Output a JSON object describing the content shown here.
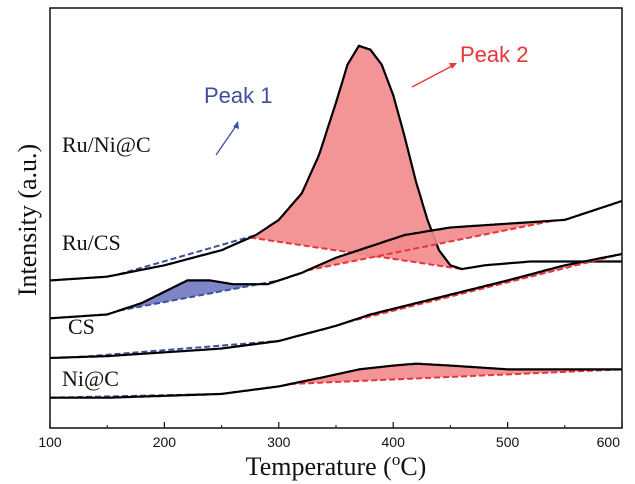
{
  "chart_data": {
    "type": "line",
    "xlabel": "Temperature (",
    "xlabel_sup": "o",
    "xlabel_unit": "C)",
    "ylabel": "Intensity (a.u.)",
    "xlim": [
      100,
      600
    ],
    "x_ticks": [
      "100",
      "200",
      "300",
      "400",
      "500",
      "600"
    ],
    "y_ticks_labeled": false,
    "colors": {
      "curve": "#000000",
      "peak1": "#3f4fa0",
      "peak2": "#e8353a",
      "peak2_fill": "#f28a8c",
      "peak1_fill": "#6f78c0"
    },
    "annotations": [
      {
        "text": "Peak 1",
        "color": "#3f4fa0"
      },
      {
        "text": "Peak 2",
        "color": "#e8353a"
      }
    ],
    "series": [
      {
        "name": "Ru/Ni@C",
        "x": [
          100,
          150,
          200,
          250,
          280,
          300,
          320,
          335,
          350,
          360,
          370,
          380,
          390,
          400,
          410,
          420,
          430,
          440,
          450,
          460,
          480,
          520,
          560,
          600
        ],
        "y": [
          0.23,
          0.24,
          0.27,
          0.31,
          0.35,
          0.39,
          0.46,
          0.56,
          0.7,
          0.8,
          0.85,
          0.84,
          0.8,
          0.72,
          0.61,
          0.49,
          0.39,
          0.31,
          0.27,
          0.26,
          0.27,
          0.28,
          0.28,
          0.28
        ],
        "peaks": [
          {
            "label": "Peak 1",
            "x_range": [
              160,
              280
            ]
          },
          {
            "label": "Peak 2",
            "x_range": [
              275,
              460
            ],
            "center": 372
          }
        ]
      },
      {
        "name": "Ru/CS",
        "x": [
          100,
          150,
          180,
          200,
          220,
          240,
          260,
          290,
          320,
          350,
          380,
          410,
          450,
          500,
          550,
          600
        ],
        "y": [
          0.13,
          0.14,
          0.17,
          0.2,
          0.23,
          0.23,
          0.22,
          0.22,
          0.25,
          0.29,
          0.32,
          0.35,
          0.37,
          0.38,
          0.39,
          0.44
        ],
        "peaks": [
          {
            "label": "Peak 1",
            "x_range": [
              160,
              300
            ],
            "center": 235
          },
          {
            "label": "Peak 2",
            "x_range": [
              325,
              540
            ],
            "center": 455
          }
        ]
      },
      {
        "name": "CS",
        "x": [
          100,
          150,
          200,
          250,
          300,
          350,
          380,
          420,
          460,
          500,
          550,
          600
        ],
        "y": [
          0.025,
          0.03,
          0.04,
          0.05,
          0.07,
          0.11,
          0.14,
          0.17,
          0.2,
          0.23,
          0.27,
          0.3
        ],
        "peaks": [
          {
            "label": "Peak 1",
            "x_range": [
              125,
              300
            ]
          },
          {
            "label": "Peak 2",
            "x_range": [
              360,
              600
            ]
          }
        ]
      },
      {
        "name": "Ni@C",
        "x": [
          100,
          150,
          200,
          250,
          300,
          340,
          370,
          400,
          420,
          450,
          500,
          550,
          600
        ],
        "y": [
          -0.08,
          -0.08,
          -0.075,
          -0.07,
          -0.05,
          -0.025,
          -0.005,
          0.005,
          0.01,
          0.005,
          -0.005,
          -0.005,
          -0.005
        ],
        "peaks": [
          {
            "label": "Peak 1",
            "x_range": [
              100,
              250
            ]
          },
          {
            "label": "Peak 2",
            "x_range": [
              310,
              600
            ],
            "center": 420
          }
        ]
      }
    ]
  }
}
